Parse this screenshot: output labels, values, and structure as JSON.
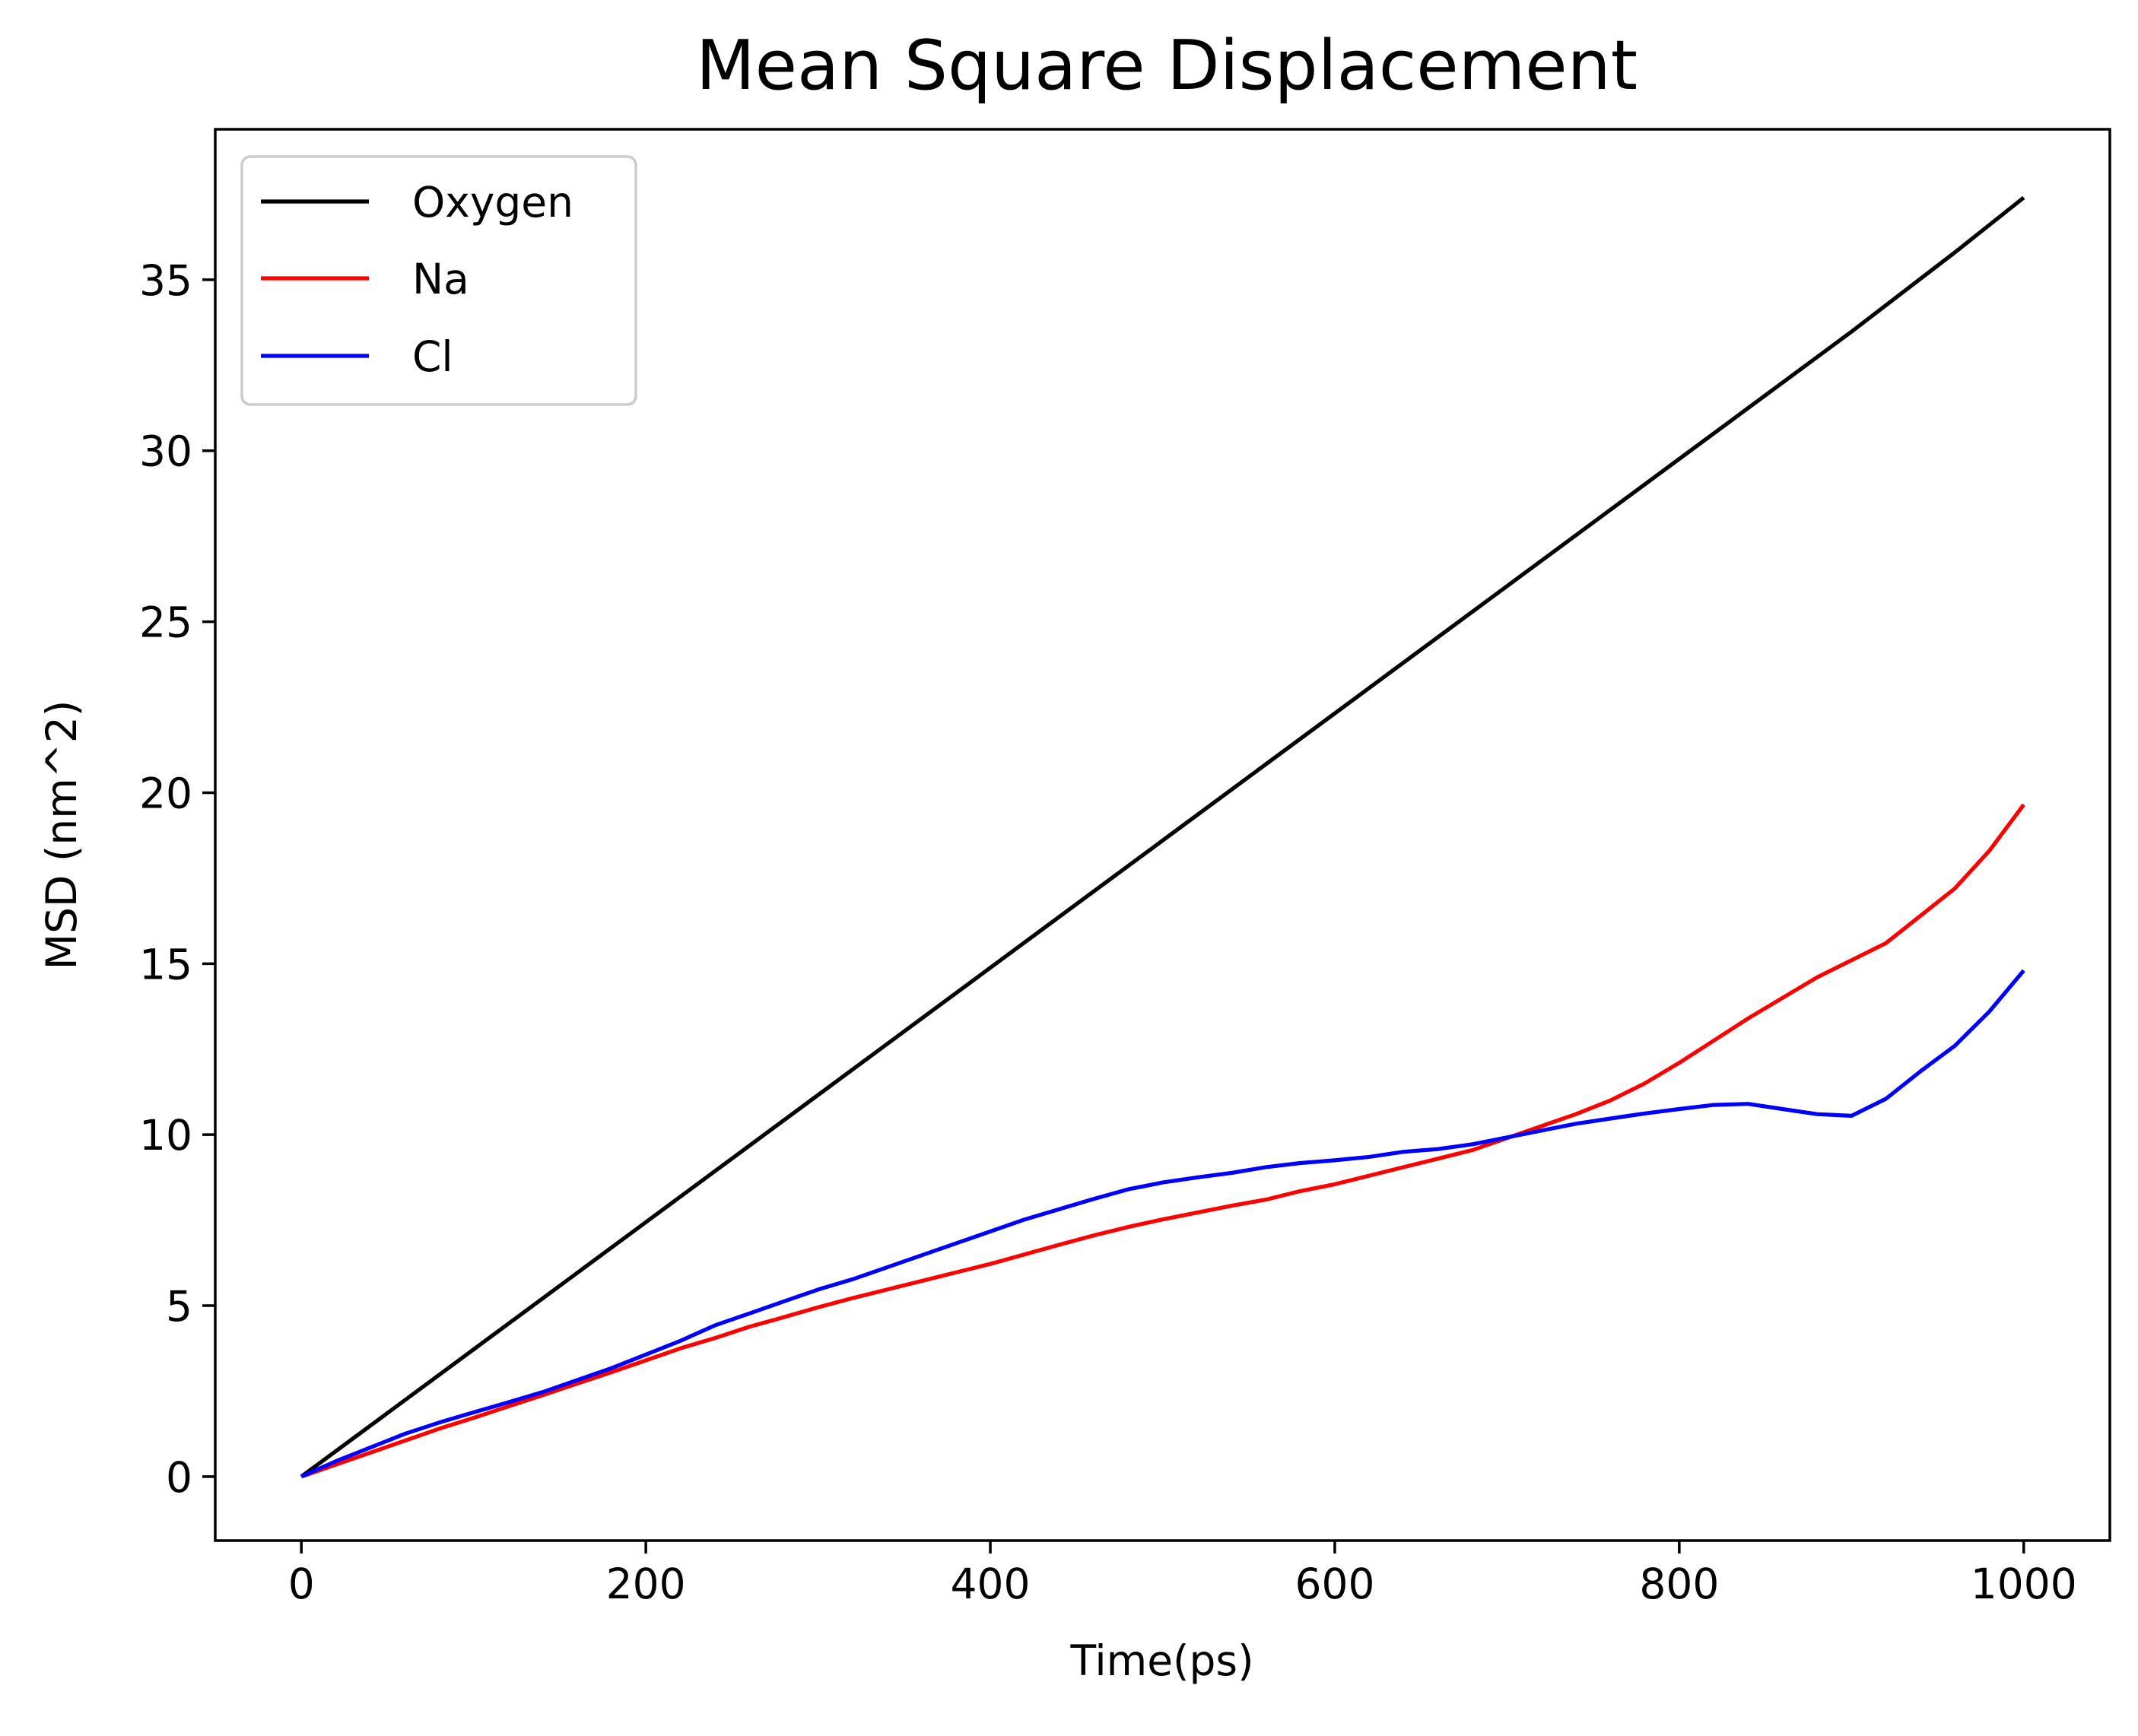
{
  "chart_data": {
    "type": "line",
    "title": "Mean Square Displacement",
    "xlabel": "Time(ps)",
    "ylabel": "MSD (nm^2)",
    "xlim": [
      -50,
      1050
    ],
    "ylim": [
      -1.87,
      39.4
    ],
    "xticks": [
      0,
      200,
      400,
      600,
      800,
      1000
    ],
    "yticks": [
      0,
      5,
      10,
      15,
      20,
      25,
      30,
      35
    ],
    "grid": false,
    "legend_position": "top-left",
    "series": [
      {
        "name": "Oxygen",
        "color": "#000000",
        "x": [
          0,
          100,
          200,
          300,
          400,
          500,
          600,
          700,
          800,
          900,
          960,
          980,
          1000
        ],
        "y": [
          0,
          3.72,
          7.44,
          11.16,
          14.88,
          18.6,
          22.32,
          26.04,
          29.76,
          33.48,
          35.8,
          36.6,
          37.4
        ]
      },
      {
        "name": "Na",
        "color": "#ff0000",
        "x": [
          0,
          20,
          40,
          60,
          80,
          100,
          120,
          140,
          160,
          180,
          200,
          220,
          240,
          260,
          280,
          300,
          320,
          340,
          360,
          380,
          400,
          420,
          440,
          460,
          480,
          500,
          520,
          540,
          560,
          580,
          600,
          620,
          640,
          660,
          680,
          700,
          720,
          740,
          760,
          780,
          800,
          820,
          840,
          860,
          880,
          900,
          920,
          940,
          960,
          980,
          1000
        ],
        "y": [
          0,
          0.35,
          0.7,
          1.05,
          1.4,
          1.72,
          2.05,
          2.38,
          2.72,
          3.05,
          3.4,
          3.75,
          4.05,
          4.38,
          4.66,
          4.95,
          5.22,
          5.47,
          5.72,
          5.97,
          6.22,
          6.5,
          6.78,
          7.05,
          7.3,
          7.52,
          7.72,
          7.92,
          8.1,
          8.35,
          8.55,
          8.8,
          9.05,
          9.3,
          9.55,
          9.9,
          10.25,
          10.6,
          11.0,
          11.5,
          12.1,
          12.75,
          13.4,
          14.0,
          14.6,
          15.1,
          15.6,
          16.4,
          17.2,
          18.3,
          19.65
        ]
      },
      {
        "name": "Cl",
        "color": "#0000ff",
        "x": [
          0,
          20,
          40,
          60,
          80,
          100,
          120,
          140,
          160,
          180,
          200,
          220,
          240,
          260,
          280,
          300,
          320,
          340,
          360,
          380,
          400,
          420,
          440,
          460,
          480,
          500,
          520,
          540,
          560,
          580,
          600,
          620,
          640,
          660,
          680,
          700,
          720,
          740,
          760,
          780,
          800,
          820,
          840,
          860,
          880,
          900,
          920,
          940,
          960,
          980,
          1000
        ],
        "y": [
          0,
          0.45,
          0.85,
          1.25,
          1.58,
          1.88,
          2.17,
          2.47,
          2.82,
          3.17,
          3.57,
          3.97,
          4.42,
          4.77,
          5.12,
          5.47,
          5.77,
          6.12,
          6.47,
          6.82,
          7.17,
          7.52,
          7.82,
          8.12,
          8.4,
          8.6,
          8.75,
          8.88,
          9.05,
          9.17,
          9.25,
          9.35,
          9.5,
          9.58,
          9.72,
          9.92,
          10.12,
          10.32,
          10.47,
          10.62,
          10.75,
          10.87,
          10.9,
          10.75,
          10.6,
          10.55,
          11.05,
          11.85,
          12.6,
          13.6,
          14.8
        ]
      }
    ]
  }
}
